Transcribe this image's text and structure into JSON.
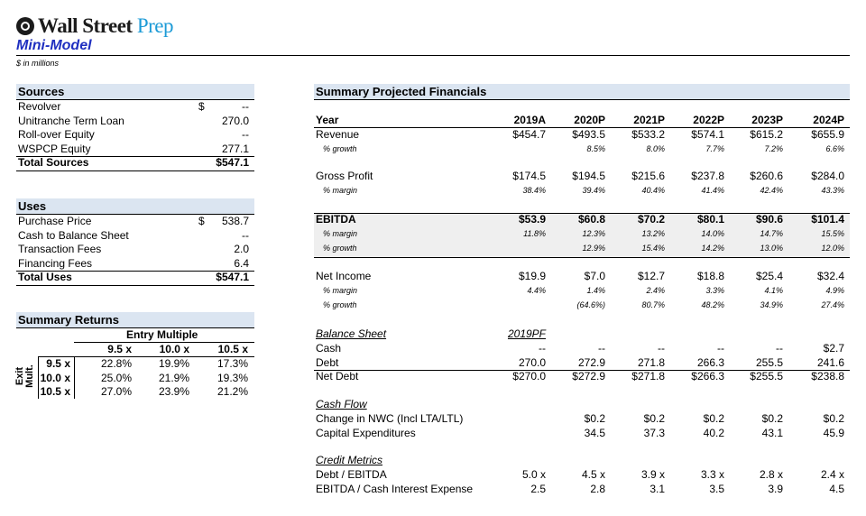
{
  "header": {
    "brand_main": "Wall Street ",
    "brand_accent": "Prep",
    "title": "Mini-Model",
    "units": "$ in millions"
  },
  "sources": {
    "title": "Sources",
    "rows": [
      {
        "label": "Revolver",
        "cur": "$",
        "value": "--"
      },
      {
        "label": "Unitranche Term Loan",
        "cur": "",
        "value": "270.0"
      },
      {
        "label": "Roll-over Equity",
        "cur": "",
        "value": "--"
      },
      {
        "label": "WSPCP Equity",
        "cur": "",
        "value": "277.1"
      }
    ],
    "total_label": "Total Sources",
    "total_value": "$547.1"
  },
  "uses": {
    "title": "Uses",
    "rows": [
      {
        "label": "Purchase Price",
        "cur": "$",
        "value": "538.7"
      },
      {
        "label": "Cash to Balance Sheet",
        "cur": "",
        "value": "--"
      },
      {
        "label": "Transaction Fees",
        "cur": "",
        "value": "2.0"
      },
      {
        "label": "Financing Fees",
        "cur": "",
        "value": "6.4"
      }
    ],
    "total_label": "Total Uses",
    "total_value": "$547.1"
  },
  "returns": {
    "title": "Summary Returns",
    "entry_label": "Entry Multiple",
    "exit_label_1": "Exit",
    "exit_label_2": "Mult.",
    "entry_cols": [
      "9.5 x",
      "10.0 x",
      "10.5 x"
    ],
    "rows": [
      {
        "exit": "9.5 x",
        "vals": [
          "22.8%",
          "19.9%",
          "17.3%"
        ]
      },
      {
        "exit": "10.0 x",
        "vals": [
          "25.0%",
          "21.9%",
          "19.3%"
        ]
      },
      {
        "exit": "10.5 x",
        "vals": [
          "27.0%",
          "23.9%",
          "21.2%"
        ]
      }
    ]
  },
  "summary": {
    "title": "Summary Projected Financials",
    "year_label": "Year",
    "years": [
      "2019A",
      "2020P",
      "2021P",
      "2022P",
      "2023P",
      "2024P"
    ],
    "revenue": {
      "label": "Revenue",
      "vals": [
        "$454.7",
        "$493.5",
        "$533.2",
        "$574.1",
        "$615.2",
        "$655.9"
      ]
    },
    "rev_growth": {
      "label": "% growth",
      "vals": [
        "",
        "8.5%",
        "8.0%",
        "7.7%",
        "7.2%",
        "6.6%"
      ]
    },
    "gross_profit": {
      "label": "Gross Profit",
      "vals": [
        "$174.5",
        "$194.5",
        "$215.6",
        "$237.8",
        "$260.6",
        "$284.0"
      ]
    },
    "gp_margin": {
      "label": "% margin",
      "vals": [
        "38.4%",
        "39.4%",
        "40.4%",
        "41.4%",
        "42.4%",
        "43.3%"
      ]
    },
    "ebitda": {
      "label": "EBITDA",
      "vals": [
        "$53.9",
        "$60.8",
        "$70.2",
        "$80.1",
        "$90.6",
        "$101.4"
      ]
    },
    "ebitda_margin": {
      "label": "% margin",
      "vals": [
        "11.8%",
        "12.3%",
        "13.2%",
        "14.0%",
        "14.7%",
        "15.5%"
      ]
    },
    "ebitda_growth": {
      "label": "% growth",
      "vals": [
        "",
        "12.9%",
        "15.4%",
        "14.2%",
        "13.0%",
        "12.0%"
      ]
    },
    "net_income": {
      "label": "Net Income",
      "vals": [
        "$19.9",
        "$7.0",
        "$12.7",
        "$18.8",
        "$25.4",
        "$32.4"
      ]
    },
    "ni_margin": {
      "label": "% margin",
      "vals": [
        "4.4%",
        "1.4%",
        "2.4%",
        "3.3%",
        "4.1%",
        "4.9%"
      ]
    },
    "ni_growth": {
      "label": "% growth",
      "vals": [
        "",
        "(64.6%)",
        "80.7%",
        "48.2%",
        "34.9%",
        "27.4%"
      ]
    },
    "bs_title": "Balance Sheet",
    "bs_pf": "2019PF",
    "cash": {
      "label": "Cash",
      "vals": [
        "--",
        "--",
        "--",
        "--",
        "--",
        "$2.7"
      ]
    },
    "debt": {
      "label": "Debt",
      "vals": [
        "270.0",
        "272.9",
        "271.8",
        "266.3",
        "255.5",
        "241.6"
      ]
    },
    "net_debt": {
      "label": "Net Debt",
      "vals": [
        "$270.0",
        "$272.9",
        "$271.8",
        "$266.3",
        "$255.5",
        "$238.8"
      ]
    },
    "cf_title": "Cash Flow",
    "nwc": {
      "label": "Change in NWC (Incl LTA/LTL)",
      "vals": [
        "",
        "$0.2",
        "$0.2",
        "$0.2",
        "$0.2",
        "$0.2"
      ]
    },
    "capex": {
      "label": "Capital Expenditures",
      "vals": [
        "",
        "34.5",
        "37.3",
        "40.2",
        "43.1",
        "45.9"
      ]
    },
    "cm_title": "Credit Metrics",
    "debt_ebitda": {
      "label": "Debt / EBITDA",
      "vals": [
        "5.0 x",
        "4.5 x",
        "3.9 x",
        "3.3 x",
        "2.8 x",
        "2.4 x"
      ]
    },
    "ebitda_int": {
      "label": "EBITDA / Cash Interest Expense",
      "vals": [
        "2.5",
        "2.8",
        "3.1",
        "3.5",
        "3.9",
        "4.5"
      ]
    }
  }
}
